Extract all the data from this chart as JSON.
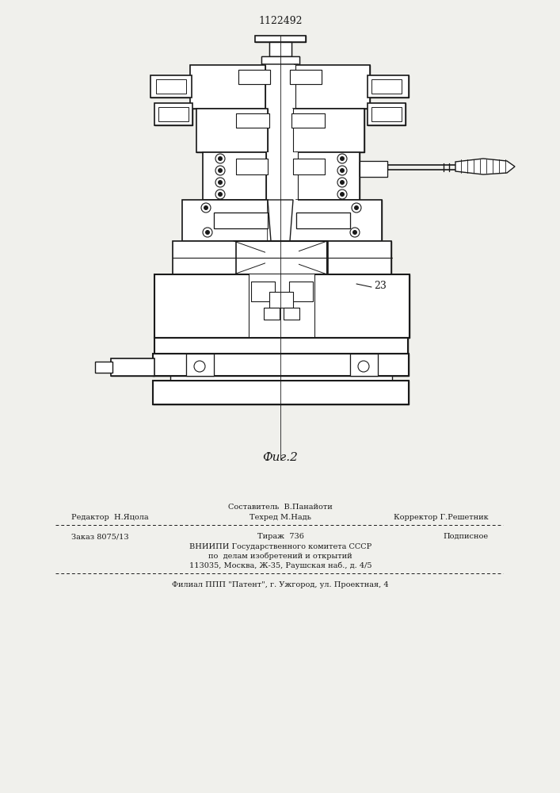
{
  "patent_number": "1122492",
  "figure_label": "Фиг.2",
  "annotation_23": "23",
  "bg": "#f0f0ec",
  "lc": "#1a1a1a",
  "footer_sestavitel": "Составитель  В.Панайоти",
  "footer_tehred": "Техред М.Надь",
  "footer_redaktor": "Редактор  Н.Яцола",
  "footer_korrektor": "Корректор Г.Решетник",
  "footer_zakaz": "Заказ 8075/13",
  "footer_tirazh": "Тираж  736",
  "footer_podpisnoe": "Подписное",
  "footer_vniipи": "ВНИИПИ Государственного комитета СССР",
  "footer_po": "по  делам изобретений и открытий",
  "footer_addr": "113035, Москва, Ж-35, Раушская наб., д. 4/5",
  "footer_filial": "Филиал ППП \"Патент\", г. Ужгород, ул. Проектная, 4"
}
